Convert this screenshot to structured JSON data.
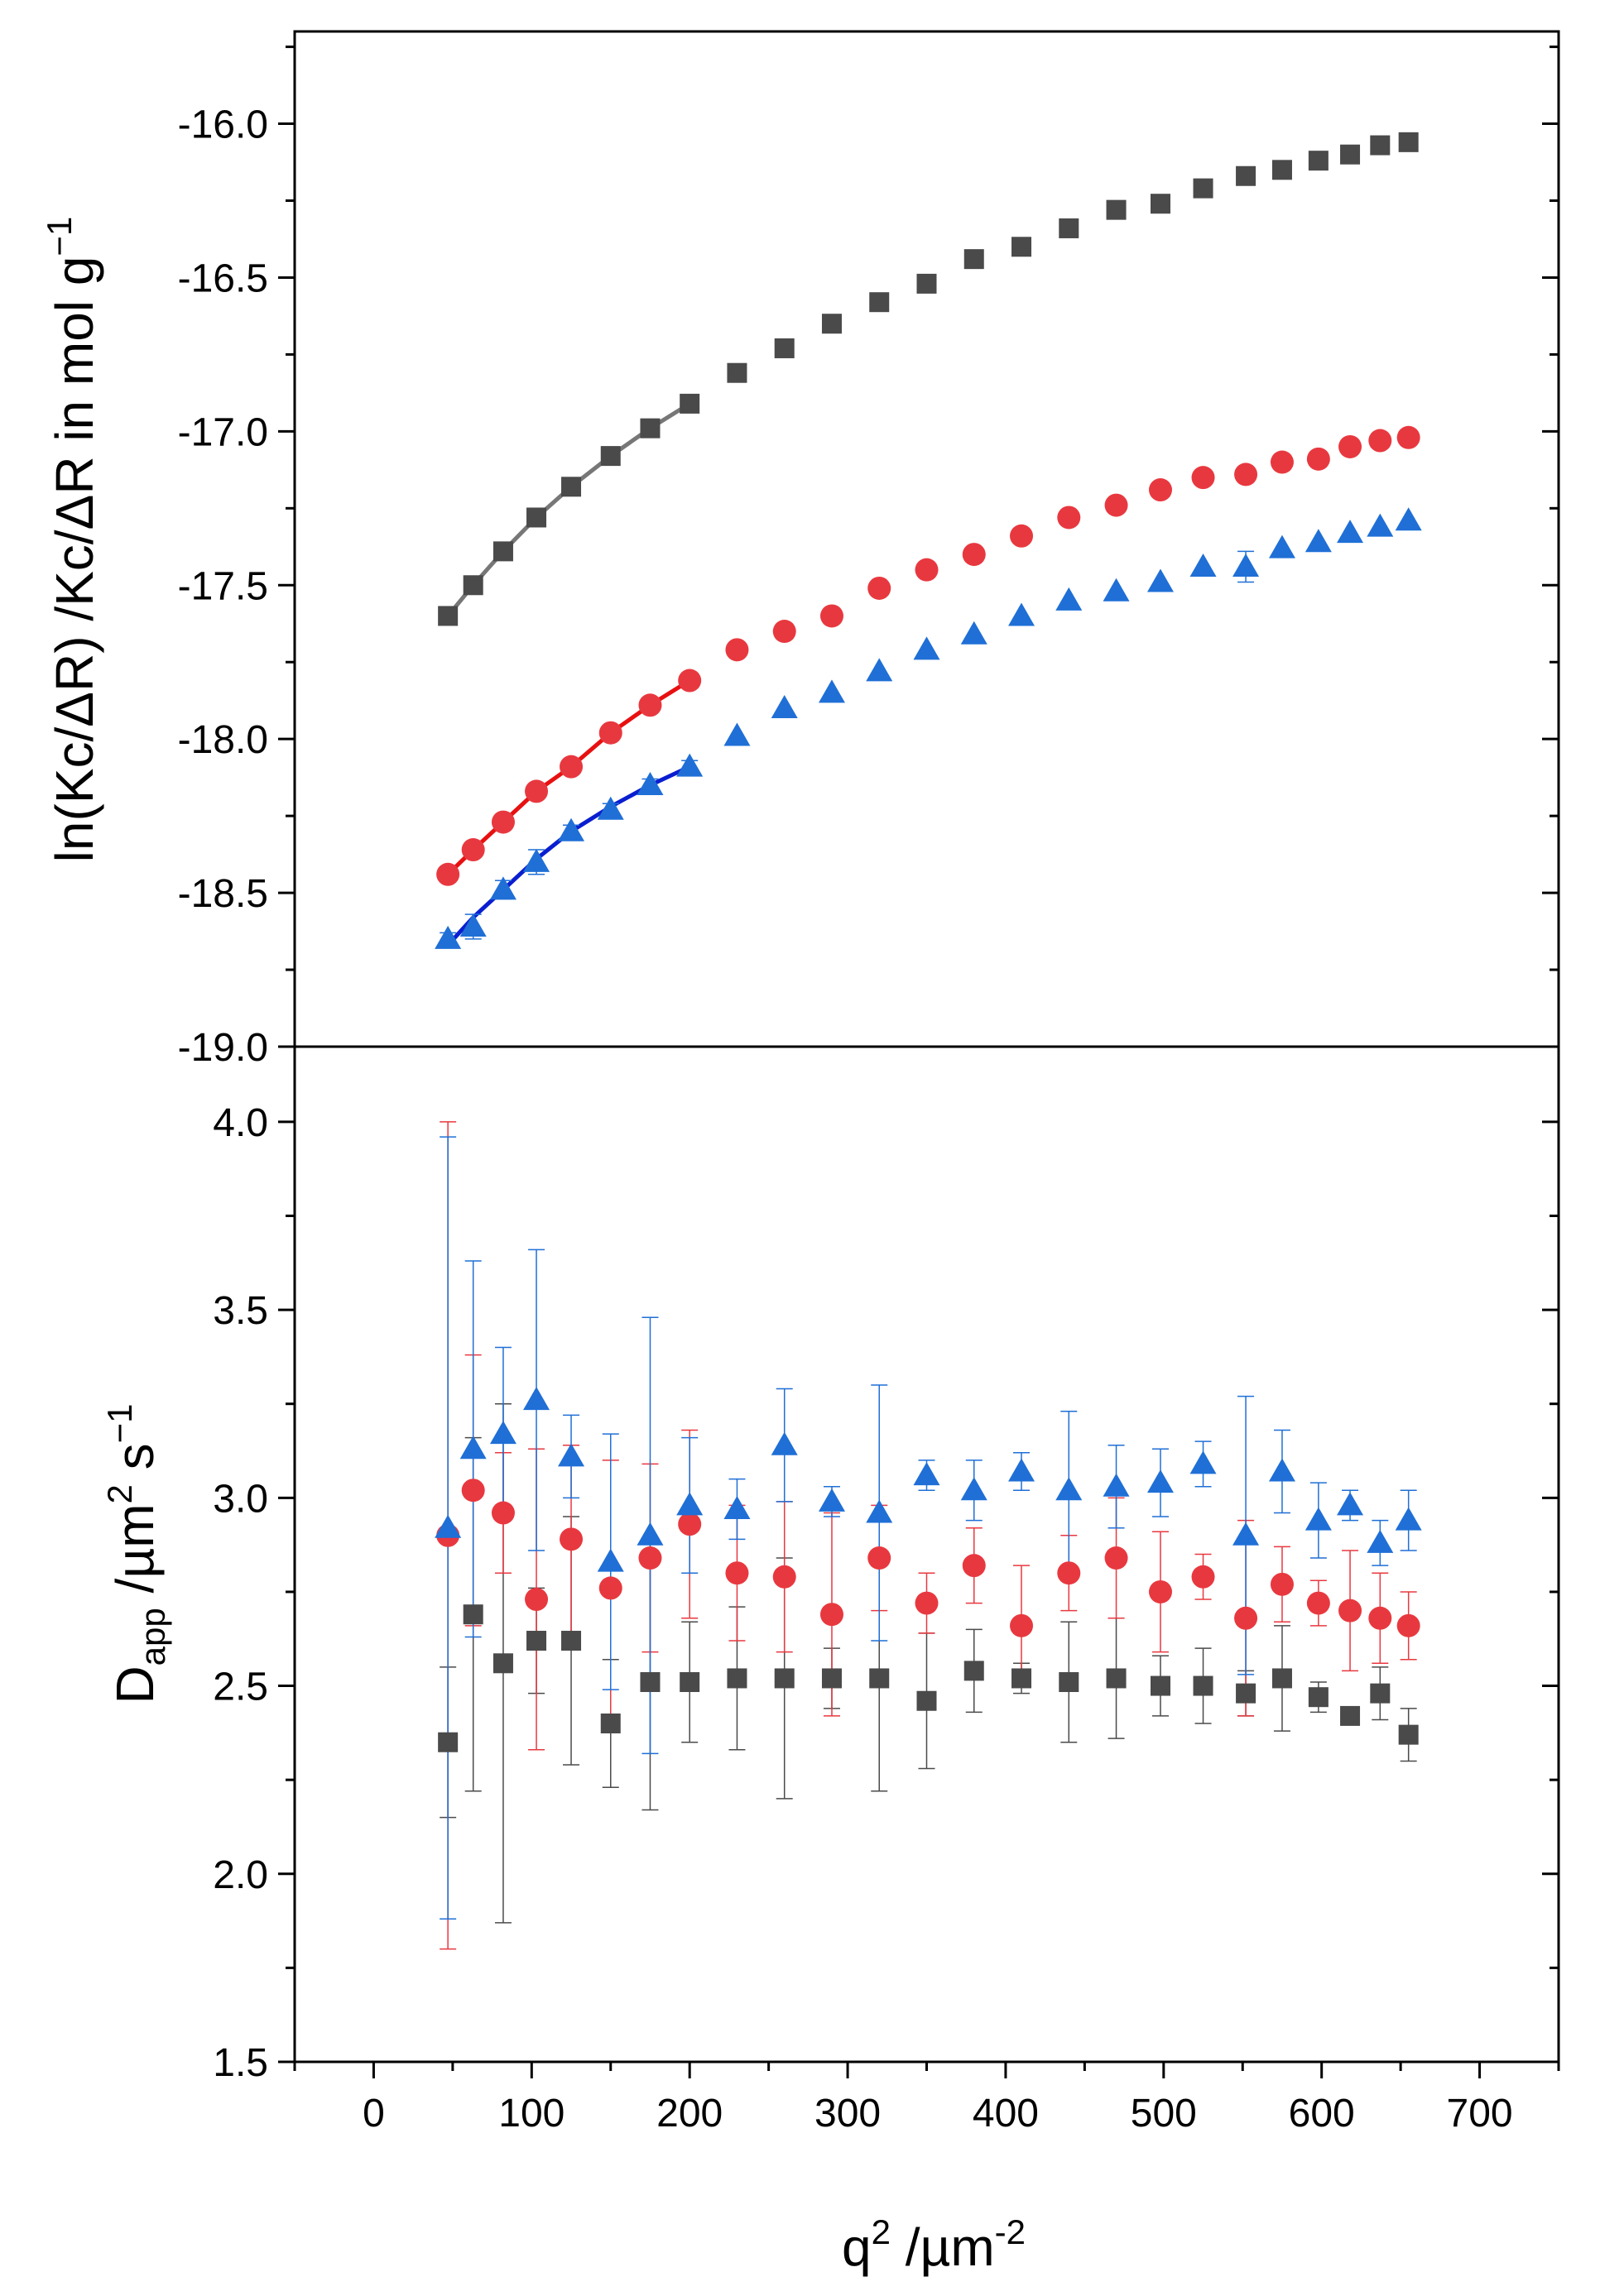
{
  "chart_data": [
    {
      "type": "scatter",
      "panel": "top",
      "ylabel": "ln(Kc/ΔR) /Kc/ΔR in mol g",
      "ylabel_superscript": "−1",
      "ylim": [
        -19.0,
        -15.7
      ],
      "yticks": [
        -19.0,
        -18.5,
        -18.0,
        -17.5,
        -17.0,
        -16.5,
        -16.0
      ],
      "ytick_labels": [
        "-19.0",
        "-18.5",
        "-18.0",
        "-17.5",
        "-17.0",
        "-16.5",
        "-16.0"
      ],
      "series": [
        {
          "name": "gray-squares",
          "color": "#4a4a4a",
          "marker": "square",
          "x": [
            47,
            63,
            82,
            103,
            125,
            150,
            175,
            200,
            230,
            260,
            290,
            320,
            350,
            380,
            410,
            440,
            470,
            498,
            525,
            552,
            575,
            598,
            618,
            637,
            655
          ],
          "y": [
            -17.6,
            -17.5,
            -17.39,
            -17.28,
            -17.18,
            -17.08,
            -16.99,
            -16.91,
            -16.81,
            -16.73,
            -16.65,
            -16.58,
            -16.52,
            -16.44,
            -16.4,
            -16.34,
            -16.28,
            -16.26,
            -16.21,
            -16.17,
            -16.15,
            -16.12,
            -16.1,
            -16.07,
            -16.06
          ],
          "fit": {
            "color": "#777777",
            "x": [
              47,
              63,
              82,
              103,
              125,
              150,
              175,
              200
            ],
            "y": [
              -17.6,
              -17.5,
              -17.39,
              -17.28,
              -17.18,
              -17.08,
              -16.99,
              -16.91
            ]
          }
        },
        {
          "name": "red-circles",
          "color": "#e8383f",
          "marker": "circle",
          "x": [
            47,
            63,
            82,
            103,
            125,
            150,
            175,
            200,
            230,
            260,
            290,
            320,
            350,
            380,
            410,
            440,
            470,
            498,
            525,
            552,
            575,
            598,
            618,
            637,
            655
          ],
          "y": [
            -18.44,
            -18.36,
            -18.27,
            -18.17,
            -18.09,
            -17.98,
            -17.89,
            -17.81,
            -17.71,
            -17.65,
            -17.6,
            -17.51,
            -17.45,
            -17.4,
            -17.34,
            -17.28,
            -17.24,
            -17.19,
            -17.15,
            -17.14,
            -17.1,
            -17.09,
            -17.05,
            -17.03,
            -17.02
          ],
          "fit": {
            "color": "#e81010",
            "x": [
              47,
              63,
              82,
              103,
              125,
              150,
              175,
              200
            ],
            "y": [
              -18.44,
              -18.36,
              -18.27,
              -18.17,
              -18.09,
              -17.98,
              -17.89,
              -17.81
            ]
          }
        },
        {
          "name": "blue-triangles",
          "color": "#1f6fd6",
          "marker": "triangle",
          "x": [
            47,
            63,
            82,
            103,
            125,
            150,
            175,
            200,
            230,
            260,
            290,
            320,
            350,
            380,
            410,
            440,
            470,
            498,
            525,
            552,
            575,
            598,
            618,
            637,
            655
          ],
          "y": [
            -18.65,
            -18.61,
            -18.49,
            -18.4,
            -18.3,
            -18.23,
            -18.15,
            -18.09,
            -17.99,
            -17.9,
            -17.85,
            -17.78,
            -17.71,
            -17.66,
            -17.6,
            -17.55,
            -17.52,
            -17.49,
            -17.44,
            -17.44,
            -17.38,
            -17.36,
            -17.33,
            -17.31,
            -17.29
          ],
          "yerr": [
            0.02,
            0.04,
            0.03,
            0.04,
            0.02,
            0.02,
            0.02,
            0.02,
            0.0,
            0.0,
            0.0,
            0.0,
            0.0,
            0.0,
            0.0,
            0.0,
            0.0,
            0.0,
            0.0,
            0.05,
            0.0,
            0.0,
            0.0,
            0.0,
            0.0
          ],
          "fit": {
            "color": "#0a1ed0",
            "x": [
              47,
              63,
              82,
              103,
              125,
              150,
              175,
              200
            ],
            "y": [
              -18.67,
              -18.58,
              -18.49,
              -18.39,
              -18.3,
              -18.22,
              -18.15,
              -18.09
            ]
          }
        }
      ]
    },
    {
      "type": "scatter",
      "panel": "bottom",
      "ylabel": "D",
      "ylabel_subscript": "app",
      "ylabel_rest": " /µm",
      "ylabel_sup1": "2",
      "ylabel_mid": " s",
      "ylabel_sup2": "−1",
      "xlabel": "q",
      "xlabel_superscript": "2",
      "xlabel_rest": " /µm",
      "xlabel_rest_superscript": "-2",
      "xlim": [
        -50,
        750
      ],
      "xticks": [
        0,
        100,
        200,
        300,
        400,
        500,
        600,
        700
      ],
      "xtick_labels": [
        "0",
        "100",
        "200",
        "300",
        "400",
        "500",
        "600",
        "700"
      ],
      "ylim": [
        1.5,
        4.2
      ],
      "yticks": [
        1.5,
        2.0,
        2.5,
        3.0,
        3.5,
        4.0
      ],
      "ytick_labels": [
        "1.5",
        "2.0",
        "2.5",
        "3.0",
        "3.5",
        "4.0"
      ],
      "series": [
        {
          "name": "gray-squares",
          "color": "#4a4a4a",
          "marker": "square",
          "x": [
            47,
            63,
            82,
            103,
            125,
            150,
            175,
            200,
            230,
            260,
            290,
            320,
            350,
            380,
            410,
            440,
            470,
            498,
            525,
            552,
            575,
            598,
            618,
            637,
            655
          ],
          "y": [
            2.35,
            2.69,
            2.56,
            2.62,
            2.62,
            2.4,
            2.51,
            2.51,
            2.52,
            2.52,
            2.52,
            2.52,
            2.46,
            2.54,
            2.52,
            2.51,
            2.52,
            2.5,
            2.5,
            2.48,
            2.52,
            2.47,
            2.42,
            2.48,
            2.37
          ],
          "yerr": [
            0.2,
            0.47,
            0.69,
            0.14,
            0.33,
            0.17,
            0.34,
            0.16,
            0.19,
            0.32,
            0.08,
            0.3,
            0.18,
            0.11,
            0.04,
            0.16,
            0.16,
            0.08,
            0.1,
            0.06,
            0.14,
            0.04,
            0.02,
            0.07,
            0.07
          ]
        },
        {
          "name": "red-circles",
          "color": "#e8383f",
          "marker": "circle",
          "x": [
            47,
            63,
            82,
            103,
            125,
            150,
            175,
            200,
            230,
            260,
            290,
            320,
            350,
            380,
            410,
            440,
            470,
            498,
            525,
            552,
            575,
            598,
            618,
            637,
            655
          ],
          "y": [
            2.9,
            3.02,
            2.96,
            2.73,
            2.89,
            2.76,
            2.84,
            2.93,
            2.8,
            2.79,
            2.69,
            2.84,
            2.72,
            2.82,
            2.66,
            2.8,
            2.84,
            2.75,
            2.79,
            2.68,
            2.77,
            2.72,
            2.7,
            2.68,
            2.66
          ],
          "yerr": [
            1.1,
            0.36,
            0.16,
            0.4,
            0.25,
            0.34,
            0.25,
            0.25,
            0.18,
            0.2,
            0.27,
            0.14,
            0.08,
            0.1,
            0.16,
            0.1,
            0.16,
            0.16,
            0.06,
            0.26,
            0.1,
            0.06,
            0.16,
            0.12,
            0.09
          ]
        },
        {
          "name": "blue-triangles",
          "color": "#1f6fd6",
          "marker": "triangle",
          "x": [
            47,
            63,
            82,
            103,
            125,
            150,
            175,
            200,
            230,
            260,
            290,
            320,
            350,
            380,
            410,
            440,
            470,
            498,
            525,
            552,
            575,
            598,
            618,
            637,
            655
          ],
          "y": [
            2.92,
            3.13,
            3.17,
            3.26,
            3.11,
            2.83,
            2.9,
            2.98,
            2.97,
            3.14,
            2.99,
            2.96,
            3.06,
            3.02,
            3.07,
            3.02,
            3.03,
            3.04,
            3.09,
            2.9,
            3.07,
            2.94,
            2.98,
            2.88,
            2.94
          ],
          "yerr": [
            1.04,
            0.5,
            0.23,
            0.4,
            0.11,
            0.34,
            0.58,
            0.18,
            0.08,
            0.15,
            0.04,
            0.34,
            0.04,
            0.08,
            0.05,
            0.21,
            0.11,
            0.09,
            0.06,
            0.37,
            0.11,
            0.1,
            0.04,
            0.06,
            0.08
          ]
        }
      ]
    }
  ]
}
